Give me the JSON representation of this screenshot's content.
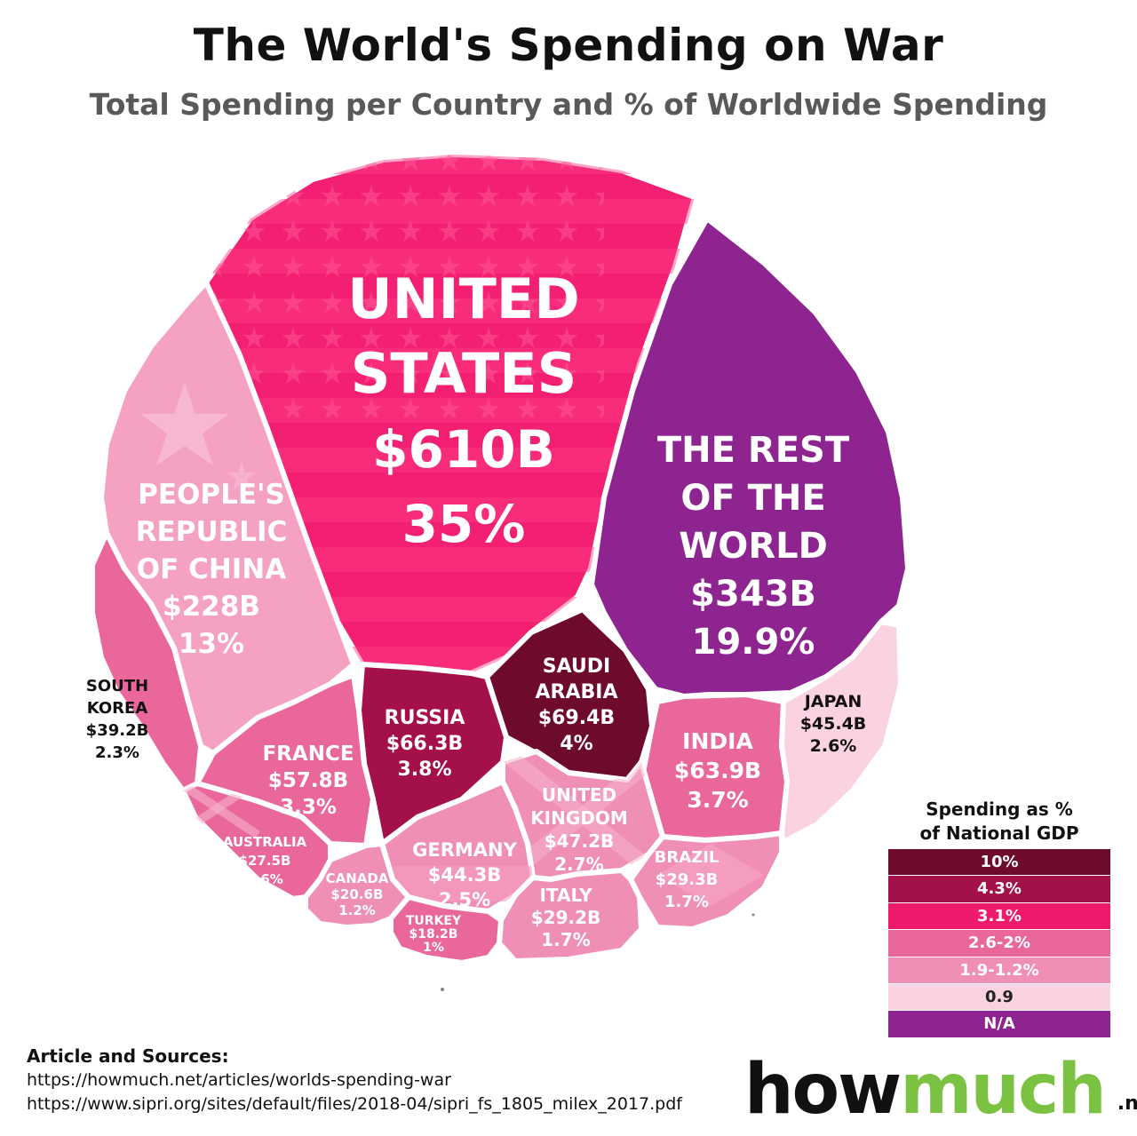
{
  "title": "The World's Spending on War",
  "subtitle": "Total Spending per Country and % of Worldwide Spending",
  "chart_data": {
    "type": "voronoi-treemap",
    "title": "The World's Spending on War",
    "subtitle": "Total Spending per Country and % of Worldwide Spending",
    "cells": [
      {
        "name": "UNITED STATES",
        "lines": [
          "UNITED",
          "STATES"
        ],
        "spending": "$610B",
        "share": "35%",
        "value": 610,
        "percent": 35,
        "gdp_bin": "3.1%"
      },
      {
        "name": "THE REST OF THE WORLD",
        "lines": [
          "THE REST",
          "OF THE",
          "WORLD"
        ],
        "spending": "$343B",
        "share": "19.9%",
        "value": 343,
        "percent": 19.9,
        "gdp_bin": "N/A"
      },
      {
        "name": "PEOPLE'S REPUBLIC OF CHINA",
        "lines": [
          "PEOPLE'S",
          "REPUBLIC",
          "OF CHINA"
        ],
        "spending": "$228B",
        "share": "13%",
        "value": 228,
        "percent": 13,
        "gdp_bin": "1.9-1.2%"
      },
      {
        "name": "SAUDI ARABIA",
        "lines": [
          "SAUDI",
          "ARABIA"
        ],
        "spending": "$69.4B",
        "share": "4%",
        "value": 69.4,
        "percent": 4,
        "gdp_bin": "10%"
      },
      {
        "name": "RUSSIA",
        "lines": [
          "RUSSIA"
        ],
        "spending": "$66.3B",
        "share": "3.8%",
        "value": 66.3,
        "percent": 3.8,
        "gdp_bin": "4.3%"
      },
      {
        "name": "INDIA",
        "lines": [
          "INDIA"
        ],
        "spending": "$63.9B",
        "share": "3.7%",
        "value": 63.9,
        "percent": 3.7,
        "gdp_bin": "2.6-2%"
      },
      {
        "name": "FRANCE",
        "lines": [
          "FRANCE"
        ],
        "spending": "$57.8B",
        "share": "3.3%",
        "value": 57.8,
        "percent": 3.3,
        "gdp_bin": "2.6-2%"
      },
      {
        "name": "UNITED KINGDOM",
        "lines": [
          "UNITED",
          "KINGDOM"
        ],
        "spending": "$47.2B",
        "share": "2.7%",
        "value": 47.2,
        "percent": 2.7,
        "gdp_bin": "1.9-1.2%"
      },
      {
        "name": "JAPAN",
        "lines": [
          "JAPAN"
        ],
        "spending": "$45.4B",
        "share": "2.6%",
        "value": 45.4,
        "percent": 2.6,
        "gdp_bin": "0.9"
      },
      {
        "name": "GERMANY",
        "lines": [
          "GERMANY"
        ],
        "spending": "$44.3B",
        "share": "2.5%",
        "value": 44.3,
        "percent": 2.5,
        "gdp_bin": "1.9-1.2%"
      },
      {
        "name": "SOUTH KOREA",
        "lines": [
          "SOUTH",
          "KOREA"
        ],
        "spending": "$39.2B",
        "share": "2.3%",
        "value": 39.2,
        "percent": 2.3,
        "gdp_bin": "2.6-2%"
      },
      {
        "name": "BRAZIL",
        "lines": [
          "BRAZIL"
        ],
        "spending": "$29.3B",
        "share": "1.7%",
        "value": 29.3,
        "percent": 1.7,
        "gdp_bin": "1.9-1.2%"
      },
      {
        "name": "ITALY",
        "lines": [
          "ITALY"
        ],
        "spending": "$29.2B",
        "share": "1.7%",
        "value": 29.2,
        "percent": 1.7,
        "gdp_bin": "1.9-1.2%"
      },
      {
        "name": "AUSTRALIA",
        "lines": [
          "AUSTRALIA"
        ],
        "spending": "$27.5B",
        "share": "1.6%",
        "value": 27.5,
        "percent": 1.6,
        "gdp_bin": "2.6-2%"
      },
      {
        "name": "CANADA",
        "lines": [
          "CANADA"
        ],
        "spending": "$20.6B",
        "share": "1.2%",
        "value": 20.6,
        "percent": 1.2,
        "gdp_bin": "1.9-1.2%"
      },
      {
        "name": "TURKEY",
        "lines": [
          "TURKEY"
        ],
        "spending": "$18.2B",
        "share": "1%",
        "value": 18.2,
        "percent": 1,
        "gdp_bin": "2.6-2%"
      }
    ]
  },
  "legend": {
    "title_line1": "Spending as %",
    "title_line2": "of National GDP",
    "items": [
      {
        "label": "10%",
        "color": "#6d0a2e"
      },
      {
        "label": "4.3%",
        "color": "#a4114a"
      },
      {
        "label": "3.1%",
        "color": "#ee1a6d"
      },
      {
        "label": "2.6-2%",
        "color": "#e9679a"
      },
      {
        "label": "1.9-1.2%",
        "color": "#f08fb5"
      },
      {
        "label": "0.9",
        "color": "#fad2e1"
      },
      {
        "label": "N/A",
        "color": "#8e2490"
      }
    ]
  },
  "sources": {
    "heading": "Article and Sources:",
    "links": [
      "https://howmuch.net/articles/worlds-spending-war",
      "https://www.sipri.org/sites/default/files/2018-04/sipri_fs_1805_milex_2017.pdf"
    ]
  },
  "brand": {
    "part1": "how",
    "part2": "much",
    "suffix": ".net"
  }
}
